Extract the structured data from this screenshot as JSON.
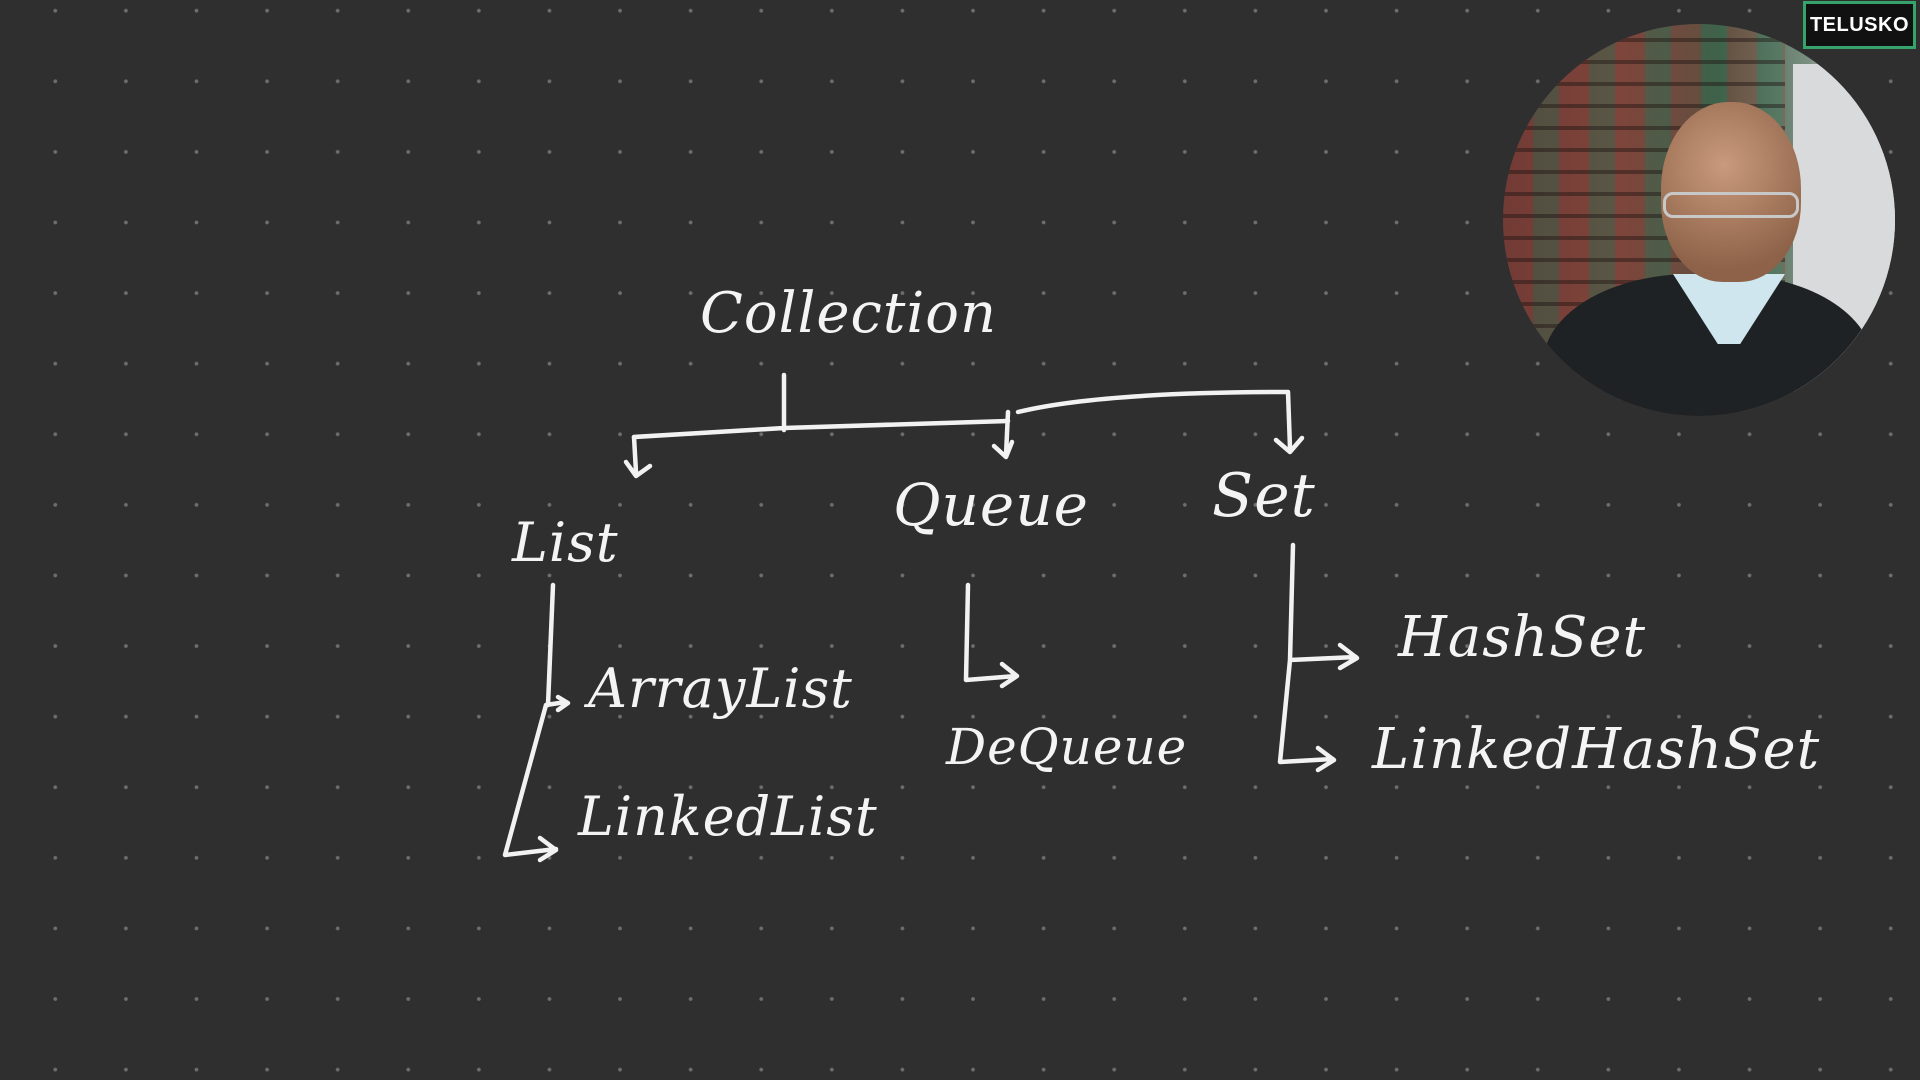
{
  "branding": {
    "logo_text": "TELUSKO"
  },
  "diagram": {
    "root": "Collection",
    "children": [
      {
        "label": "List",
        "items": [
          "ArrayList",
          "LinkedList"
        ]
      },
      {
        "label": "Queue",
        "items": [
          "DeQueue"
        ]
      },
      {
        "label": "Set",
        "items": [
          "HashSet",
          "LinkedHashSet"
        ]
      }
    ]
  },
  "colors": {
    "background": "#2f2f30",
    "ink": "#f2f2f2",
    "logo_border": "#36a36b"
  }
}
